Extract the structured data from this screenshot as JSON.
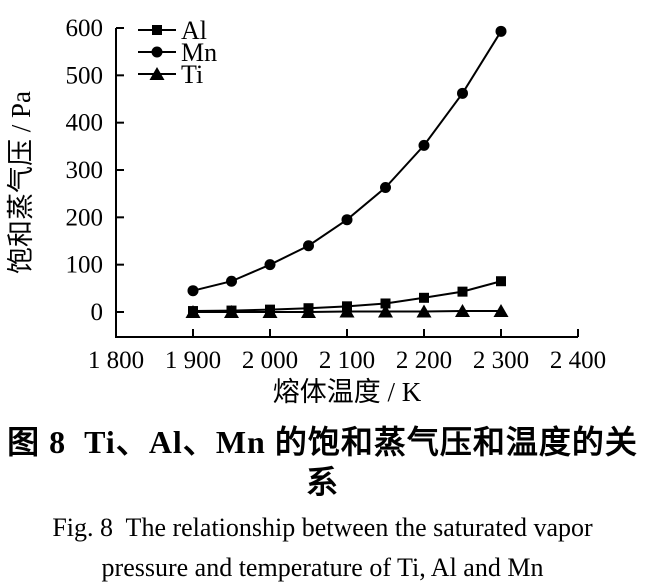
{
  "figure": {
    "caption_zh": "图 8  Ti、Al、Mn 的饱和蒸气压和温度的关系",
    "caption_en_line1": "Fig. 8  The relationship between the saturated vapor",
    "caption_en_line2": "pressure and temperature of Ti, Al and Mn"
  },
  "chart_data": {
    "type": "line",
    "title": "",
    "xlabel": "熔体温度 / K",
    "ylabel": "饱和蒸气压 / Pa",
    "x": [
      1900,
      1950,
      2000,
      2050,
      2100,
      2150,
      2200,
      2250,
      2300
    ],
    "series": [
      {
        "name": "Al",
        "marker": "square",
        "values": [
          2,
          3,
          5,
          8,
          12,
          18,
          30,
          43,
          65
        ]
      },
      {
        "name": "Mn",
        "marker": "circle",
        "values": [
          45,
          65,
          100,
          140,
          195,
          263,
          352,
          462,
          593
        ]
      },
      {
        "name": "Ti",
        "marker": "triangle",
        "values": [
          0,
          0,
          0,
          0,
          1,
          1,
          1,
          2,
          2
        ]
      }
    ],
    "xlim": [
      1800,
      2400
    ],
    "ylim": [
      0,
      600
    ],
    "x_ticks": [
      1800,
      1900,
      2000,
      2100,
      2200,
      2300,
      2400
    ],
    "x_tick_labels": [
      "1 800",
      "1 900",
      "2 000",
      "2 100",
      "2 200",
      "2 300",
      "2 400"
    ],
    "y_ticks": [
      0,
      100,
      200,
      300,
      400,
      500,
      600
    ],
    "y_tick_labels": [
      "0",
      "100",
      "200",
      "300",
      "400",
      "500",
      "600"
    ],
    "grid": false,
    "legend_position": "top-left",
    "line_color": "#000000",
    "background": "#ffffff"
  }
}
